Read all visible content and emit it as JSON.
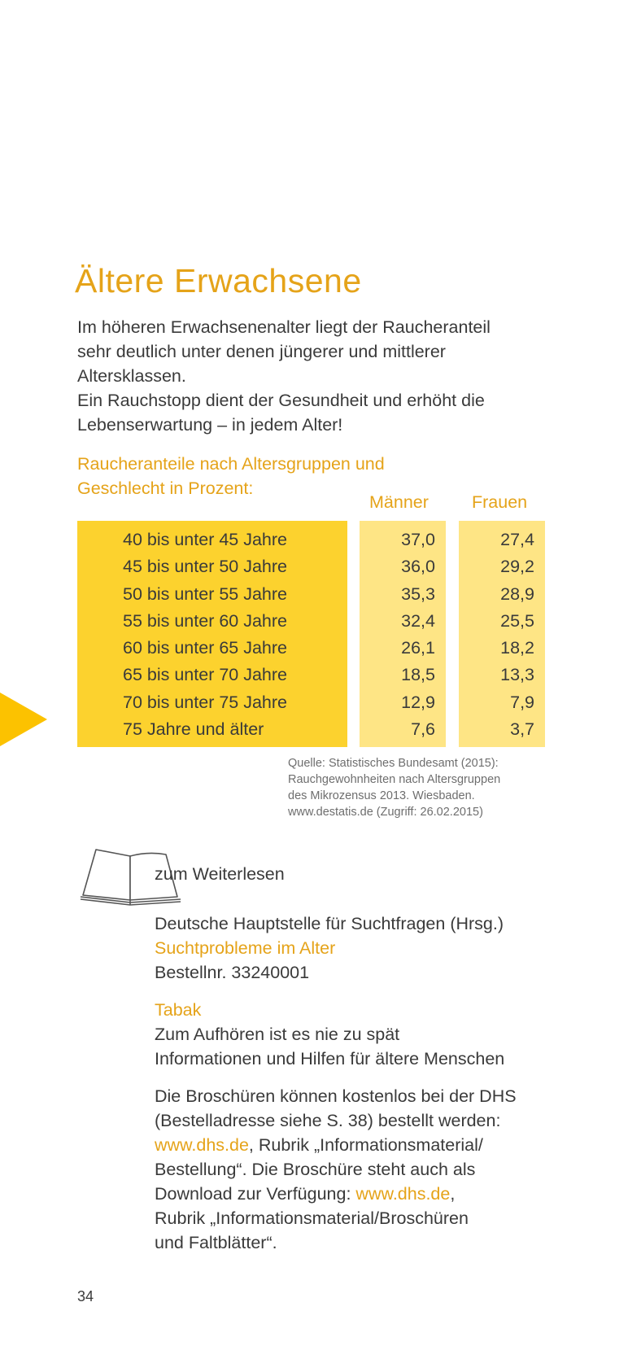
{
  "title": "Ältere Erwachsene",
  "intro": {
    "line1": "Im höheren Erwachsenenalter liegt der Raucheranteil",
    "line2": "sehr deutlich unter denen jüngerer und mittlerer",
    "line3": "Altersklassen.",
    "line4": "Ein Rauchstopp dient der Gesundheit und erhöht die",
    "line5": "Lebenserwartung – in jedem Alter!"
  },
  "table": {
    "caption_line1": "Raucheranteile nach Altersgruppen und",
    "caption_line2": "Geschlecht in Prozent:",
    "col_men": "Männer",
    "col_women": "Frauen",
    "rows": [
      {
        "age": "40 bis unter 45 Jahre",
        "men": "37,0",
        "women": "27,4"
      },
      {
        "age": "45 bis unter 50 Jahre",
        "men": "36,0",
        "women": "29,2"
      },
      {
        "age": "50 bis unter 55 Jahre",
        "men": "35,3",
        "women": "28,9"
      },
      {
        "age": "55 bis unter 60 Jahre",
        "men": "32,4",
        "women": "25,5"
      },
      {
        "age": "60 bis unter 65 Jahre",
        "men": "26,1",
        "women": "18,2"
      },
      {
        "age": "65 bis unter 70 Jahre",
        "men": "18,5",
        "women": "13,3"
      },
      {
        "age": "70 bis unter 75 Jahre",
        "men": "12,9",
        "women": "7,9"
      },
      {
        "age": "75 Jahre und älter",
        "men": "7,6",
        "women": "3,7"
      }
    ]
  },
  "source": {
    "line1": "Quelle: Statistisches Bundesamt (2015):",
    "line2": "Rauchgewohnheiten nach Altersgruppen",
    "line3": "des Mikrozensus 2013. Wiesbaden.",
    "line4": "www.destatis.de (Zugriff: 26.02.2015)"
  },
  "reading": {
    "label": "zum Weiterlesen",
    "ref1_publisher": "Deutsche Hauptstelle für Suchtfragen (Hrsg.)",
    "ref1_title": "Suchtprobleme im Alter",
    "ref1_order": "Bestellnr. 33240001",
    "ref2_title": "Tabak",
    "ref2_line1": "Zum Aufhören ist es nie zu spät",
    "ref2_line2": "Informationen und Hilfen für ältere Menschen",
    "note_line1": "Die Broschüren können kostenlos bei der DHS",
    "note_line2": "(Bestelladresse siehe S. 38) bestellt werden:",
    "note_link1": "www.dhs.de",
    "note_line3_rest": ", Rubrik „Informationsmaterial/",
    "note_line4": "Bestellung“. Die Broschüre steht auch als",
    "note_line5_pre": "Download zur Verfügung: ",
    "note_link2": "www.dhs.de",
    "note_line5_post": ",",
    "note_line6": "Rubrik „Informationsmaterial/Broschüren",
    "note_line7": "und Faltblätter“."
  },
  "page_number": "34",
  "icons": {
    "book": "open-book-icon",
    "marker": "triangle-marker-icon"
  },
  "colors": {
    "accent": "#e5a319",
    "table_age_bg": "#fcd22e",
    "table_value_bg": "#fee585",
    "marker": "#fcc200"
  }
}
